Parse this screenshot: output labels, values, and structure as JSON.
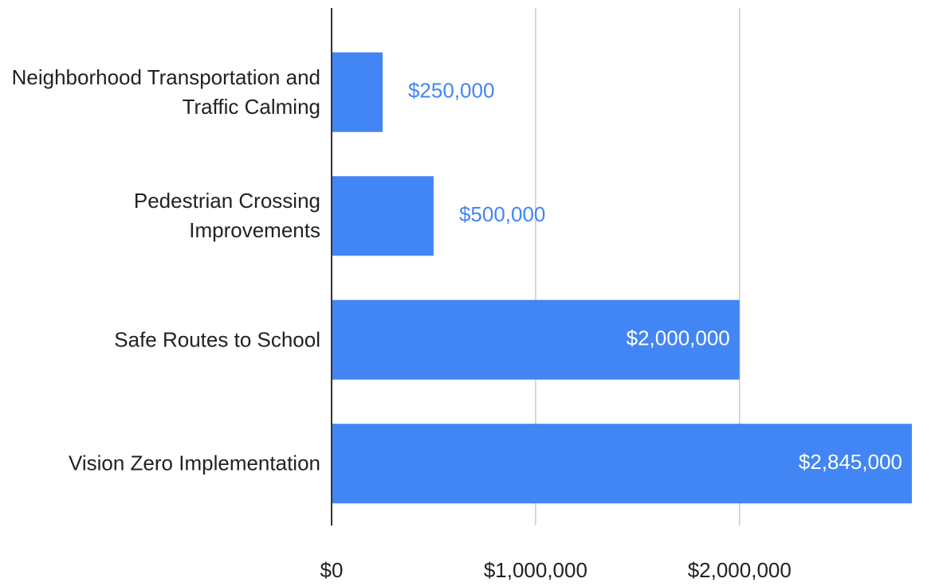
{
  "chart_data": {
    "type": "bar",
    "orientation": "horizontal",
    "categories": [
      "Neighborhood Transportation and Traffic Calming",
      "Pedestrian Crossing Improvements",
      "Safe Routes to School",
      "Vision Zero Implementation"
    ],
    "values": [
      250000,
      500000,
      2000000,
      2845000
    ],
    "value_labels": [
      "$250,000",
      "$500,000",
      "$2,000,000",
      "$2,845,000"
    ],
    "color": "#4285f4",
    "xlim": [
      0,
      2845000
    ],
    "xticks": [
      {
        "value": 0,
        "label": "$0"
      },
      {
        "value": 1000000,
        "label": "$1,000,000"
      },
      {
        "value": 2000000,
        "label": "$2,000,000"
      }
    ],
    "grid": true
  }
}
